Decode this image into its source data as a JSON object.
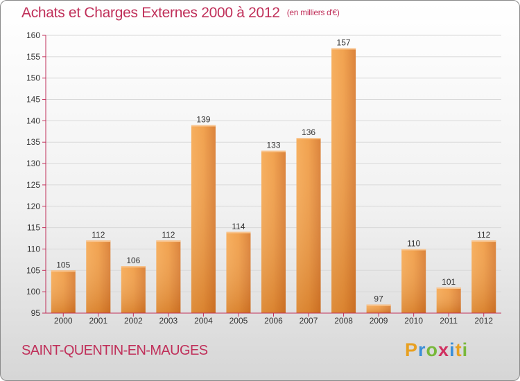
{
  "header": {
    "title": "Achats et Charges Externes 2000 à 2012",
    "unit": "(en milliers d'€)"
  },
  "footer": {
    "place": "SAINT-QUENTIN-EN-MAUGES",
    "logo": "Proxiti"
  },
  "colors": {
    "bar_light": "#f6a34c",
    "bar_dark": "#d06f1c",
    "title": "#c0305a",
    "axis": "#c0305a"
  },
  "chart_data": {
    "type": "bar",
    "title": "Achats et Charges Externes 2000 à 2012",
    "subtitle": "(en milliers d'€)",
    "categories": [
      "2000",
      "2001",
      "2002",
      "2003",
      "2004",
      "2005",
      "2006",
      "2007",
      "2008",
      "2009",
      "2010",
      "2011",
      "2012"
    ],
    "values": [
      105,
      112,
      106,
      112,
      139,
      114,
      133,
      136,
      157,
      97,
      110,
      101,
      112
    ],
    "ylim": [
      95,
      160
    ],
    "yticks": [
      95,
      100,
      105,
      110,
      115,
      120,
      125,
      130,
      135,
      140,
      145,
      150,
      155,
      160
    ],
    "grid": true
  }
}
